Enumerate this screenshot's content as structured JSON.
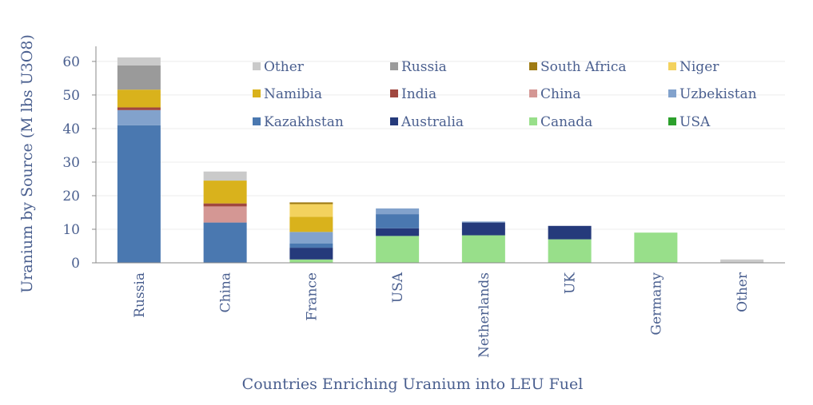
{
  "chart_data": {
    "type": "bar",
    "stacked": true,
    "xlabel": "Countries Enriching Uranium into LEU Fuel",
    "ylabel": "Uranium by Source (M lbs U3O8)",
    "ylim": [
      0,
      60
    ],
    "yticks": [
      0,
      10,
      20,
      30,
      40,
      50,
      60
    ],
    "grid": true,
    "legend_position": "top-right",
    "categories": [
      "Russia",
      "China",
      "France",
      "USA",
      "Netherlands",
      "UK",
      "Germany",
      "Other"
    ],
    "series": [
      {
        "name": "USA",
        "color": "#2ca02c",
        "values": [
          0,
          0,
          0,
          0,
          0,
          0,
          0,
          0
        ]
      },
      {
        "name": "Canada",
        "color": "#98df8a",
        "values": [
          0,
          0,
          1,
          8,
          8.2,
          7,
          9,
          0
        ]
      },
      {
        "name": "Australia",
        "color": "#253a7b",
        "values": [
          0,
          0,
          3.5,
          2.3,
          3.8,
          4,
          0,
          0
        ]
      },
      {
        "name": "Kazakhstan",
        "color": "#4a78b0",
        "values": [
          41,
          12,
          1.3,
          4.2,
          0,
          0,
          0,
          0
        ]
      },
      {
        "name": "Uzbekistan",
        "color": "#82a2cc",
        "values": [
          4.5,
          0,
          3.4,
          1.7,
          0.3,
          0,
          0,
          0
        ]
      },
      {
        "name": "China",
        "color": "#d49794",
        "values": [
          0,
          4.8,
          0,
          0,
          0,
          0,
          0,
          0
        ]
      },
      {
        "name": "India",
        "color": "#a0473f",
        "values": [
          0.8,
          0.9,
          0,
          0,
          0,
          0,
          0,
          0
        ]
      },
      {
        "name": "Namibia",
        "color": "#d9b21c",
        "values": [
          5.3,
          6.8,
          4.5,
          0,
          0,
          0,
          0,
          0
        ]
      },
      {
        "name": "Niger",
        "color": "#f3d25e",
        "values": [
          0,
          0,
          3.8,
          0,
          0,
          0,
          0,
          0
        ]
      },
      {
        "name": "South Africa",
        "color": "#9e7a12",
        "values": [
          0,
          0,
          0.5,
          0,
          0,
          0,
          0,
          0
        ]
      },
      {
        "name": "Russia",
        "color": "#9a9a9a",
        "values": [
          7.2,
          0,
          0,
          0,
          0,
          0,
          0,
          0
        ]
      },
      {
        "name": "Other",
        "color": "#cacaca",
        "values": [
          2.4,
          2.7,
          0,
          0,
          0,
          0,
          0,
          1
        ]
      }
    ],
    "legend_order": [
      "Other",
      "Russia",
      "South Africa",
      "Niger",
      "Namibia",
      "India",
      "China",
      "Uzbekistan",
      "Kazakhstan",
      "Australia",
      "Canada",
      "USA"
    ]
  }
}
